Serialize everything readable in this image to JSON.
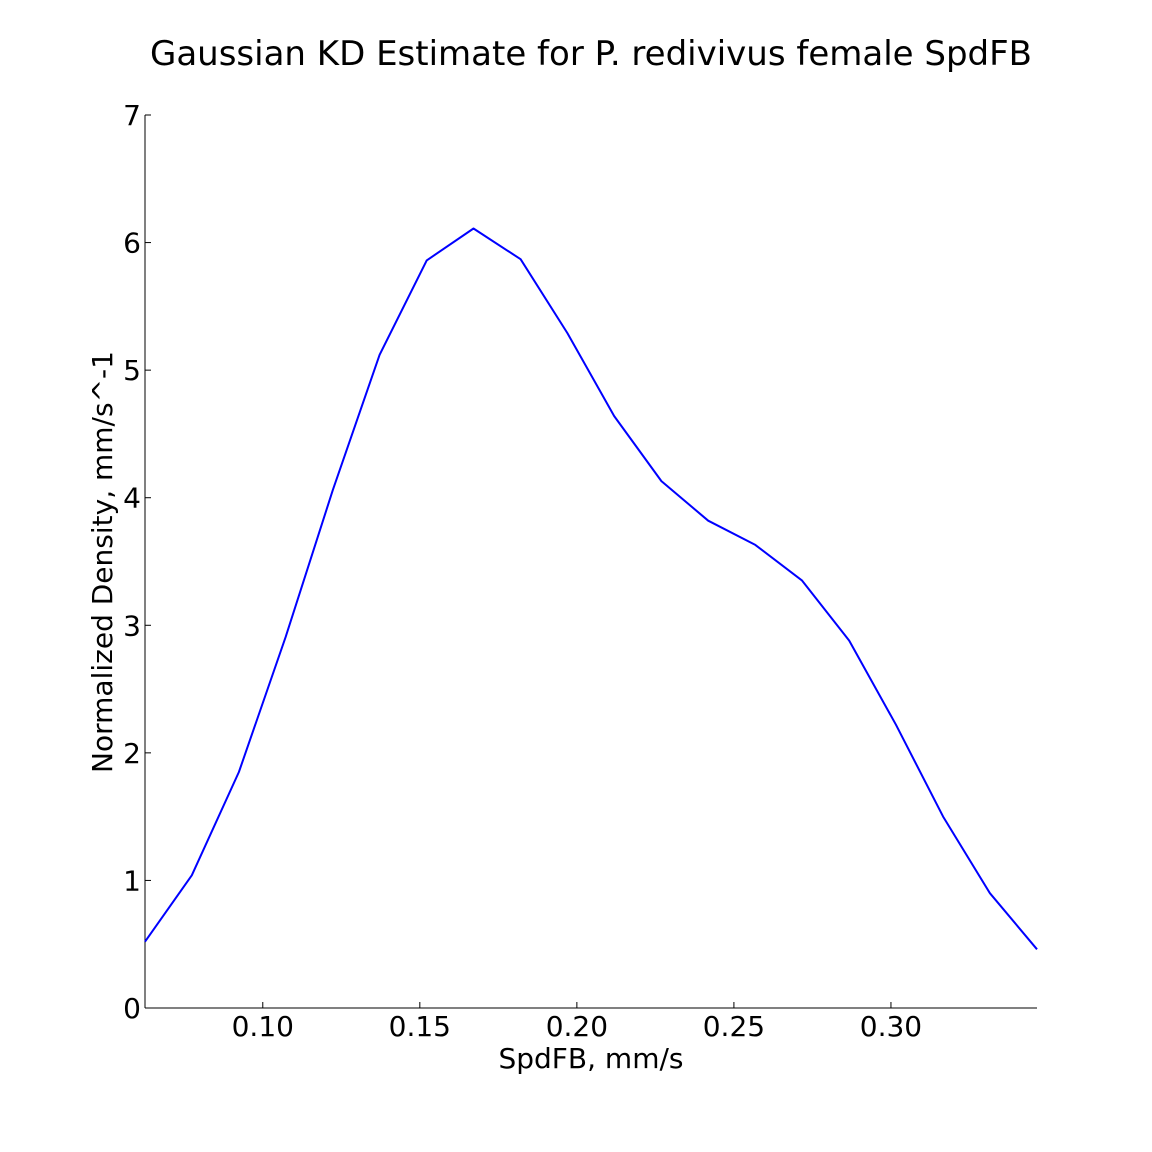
{
  "chart_data": {
    "type": "line",
    "title": "Gaussian KD Estimate for P. redivivus female SpdFB",
    "xlabel": "SpdFB, mm/s",
    "ylabel": "Normalized Density, mm/s^-1",
    "xlim": [
      0.0625,
      0.3465
    ],
    "ylim": [
      0,
      7
    ],
    "x_ticks": [
      {
        "value": 0.1,
        "label": "0.10"
      },
      {
        "value": 0.15,
        "label": "0.15"
      },
      {
        "value": 0.2,
        "label": "0.20"
      },
      {
        "value": 0.25,
        "label": "0.25"
      },
      {
        "value": 0.3,
        "label": "0.30"
      }
    ],
    "y_ticks": [
      {
        "value": 0,
        "label": "0"
      },
      {
        "value": 1,
        "label": "1"
      },
      {
        "value": 2,
        "label": "2"
      },
      {
        "value": 3,
        "label": "3"
      },
      {
        "value": 4,
        "label": "4"
      },
      {
        "value": 5,
        "label": "5"
      },
      {
        "value": 6,
        "label": "6"
      },
      {
        "value": 7,
        "label": "7"
      }
    ],
    "grid": false,
    "series": [
      {
        "color": "#0000ff",
        "x": [
          0.0625,
          0.0774,
          0.0924,
          0.1073,
          0.1223,
          0.1372,
          0.1522,
          0.1671,
          0.1821,
          0.197,
          0.2119,
          0.2269,
          0.2418,
          0.2568,
          0.2717,
          0.2867,
          0.3016,
          0.3166,
          0.3315,
          0.3465
        ],
        "y": [
          0.52,
          1.04,
          1.85,
          2.91,
          4.06,
          5.12,
          5.86,
          6.11,
          5.87,
          5.29,
          4.64,
          4.13,
          3.82,
          3.63,
          3.35,
          2.88,
          2.22,
          1.5,
          0.9,
          0.46
        ]
      }
    ]
  }
}
